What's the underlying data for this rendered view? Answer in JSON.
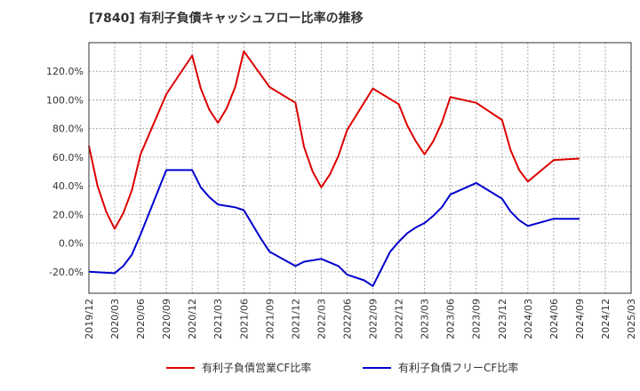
{
  "chart_data": {
    "type": "line",
    "title": "[7840]  有利子負債キャッシュフロー比率の推移",
    "xlabel": "",
    "ylabel": "",
    "ylim": [
      -35,
      140
    ],
    "yticks": [
      -20,
      0,
      20,
      40,
      60,
      80,
      100,
      120
    ],
    "ytick_labels": [
      "-20.0%",
      "0.0%",
      "20.0%",
      "40.0%",
      "60.0%",
      "80.0%",
      "100.0%",
      "120.0%"
    ],
    "x_range": [
      "2019/12",
      "2025/03"
    ],
    "x_tick_labels": [
      "2019/12",
      "2020/03",
      "2020/06",
      "2020/09",
      "2020/12",
      "2021/03",
      "2021/06",
      "2021/09",
      "2021/12",
      "2022/03",
      "2022/06",
      "2022/09",
      "2022/12",
      "2023/03",
      "2023/06",
      "2023/09",
      "2023/12",
      "2024/03",
      "2024/06",
      "2024/09",
      "2024/12",
      "2025/03"
    ],
    "grid": true,
    "legend_position": "bottom",
    "series": [
      {
        "name": "有利子負債営業CF比率",
        "color": "#dd0000",
        "points": [
          [
            "2019/12",
            68
          ],
          [
            "2020/01",
            40
          ],
          [
            "2020/02",
            22
          ],
          [
            "2020/03",
            10
          ],
          [
            "2020/04",
            21
          ],
          [
            "2020/05",
            37
          ],
          [
            "2020/06",
            62
          ],
          [
            "2020/09",
            104
          ],
          [
            "2020/12",
            131
          ],
          [
            "2021/01",
            108
          ],
          [
            "2021/02",
            93
          ],
          [
            "2021/03",
            84
          ],
          [
            "2021/04",
            94
          ],
          [
            "2021/05",
            109
          ],
          [
            "2021/06",
            134
          ],
          [
            "2021/09",
            109
          ],
          [
            "2021/12",
            98
          ],
          [
            "2022/01",
            67
          ],
          [
            "2022/02",
            50
          ],
          [
            "2022/03",
            39
          ],
          [
            "2022/04",
            48
          ],
          [
            "2022/05",
            61
          ],
          [
            "2022/06",
            79
          ],
          [
            "2022/09",
            108
          ],
          [
            "2022/12",
            97
          ],
          [
            "2023/01",
            82
          ],
          [
            "2023/02",
            71
          ],
          [
            "2023/03",
            62
          ],
          [
            "2023/04",
            71
          ],
          [
            "2023/05",
            84
          ],
          [
            "2023/06",
            102
          ],
          [
            "2023/09",
            98
          ],
          [
            "2023/12",
            86
          ],
          [
            "2024/01",
            65
          ],
          [
            "2024/02",
            51
          ],
          [
            "2024/03",
            43
          ],
          [
            "2024/06",
            58
          ],
          [
            "2024/09",
            59
          ]
        ]
      },
      {
        "name": "有利子負債フリーCF比率",
        "color": "#0000cc",
        "points": [
          [
            "2019/12",
            -20
          ],
          [
            "2020/03",
            -21
          ],
          [
            "2020/04",
            -16
          ],
          [
            "2020/05",
            -8
          ],
          [
            "2020/06",
            6
          ],
          [
            "2020/09",
            51
          ],
          [
            "2020/12",
            51
          ],
          [
            "2021/01",
            39
          ],
          [
            "2021/02",
            32
          ],
          [
            "2021/03",
            27
          ],
          [
            "2021/05",
            25
          ],
          [
            "2021/06",
            23
          ],
          [
            "2021/07",
            13
          ],
          [
            "2021/08",
            3
          ],
          [
            "2021/09",
            -6
          ],
          [
            "2021/12",
            -16
          ],
          [
            "2022/01",
            -13
          ],
          [
            "2022/03",
            -11
          ],
          [
            "2022/05",
            -16
          ],
          [
            "2022/06",
            -22
          ],
          [
            "2022/08",
            -26
          ],
          [
            "2022/09",
            -30
          ],
          [
            "2022/10",
            -18
          ],
          [
            "2022/11",
            -6
          ],
          [
            "2022/12",
            1
          ],
          [
            "2023/01",
            7
          ],
          [
            "2023/02",
            11
          ],
          [
            "2023/03",
            14
          ],
          [
            "2023/04",
            19
          ],
          [
            "2023/05",
            25
          ],
          [
            "2023/06",
            34
          ],
          [
            "2023/09",
            42
          ],
          [
            "2023/12",
            31
          ],
          [
            "2024/01",
            22
          ],
          [
            "2024/02",
            16
          ],
          [
            "2024/03",
            12
          ],
          [
            "2024/06",
            17
          ],
          [
            "2024/09",
            17
          ]
        ]
      }
    ]
  }
}
